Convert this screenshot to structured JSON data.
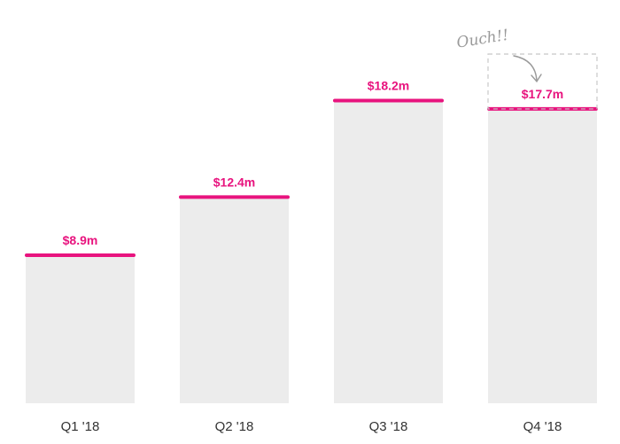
{
  "chart_data": {
    "type": "bar",
    "categories": [
      "Q1 '18",
      "Q2 '18",
      "Q3 '18",
      "Q4 '18"
    ],
    "values": [
      8.9,
      12.4,
      18.2,
      17.7
    ],
    "value_labels": [
      "$8.9m",
      "$12.4m",
      "$18.2m",
      "$17.7m"
    ],
    "title": "",
    "xlabel": "",
    "ylabel": "",
    "ylim": [
      0,
      21
    ],
    "grid": false,
    "expected_value": 21,
    "annotation": "Ouch!!",
    "colors": {
      "bar": "#ececec",
      "cap": "#e8137e",
      "label": "#e8137e"
    }
  }
}
